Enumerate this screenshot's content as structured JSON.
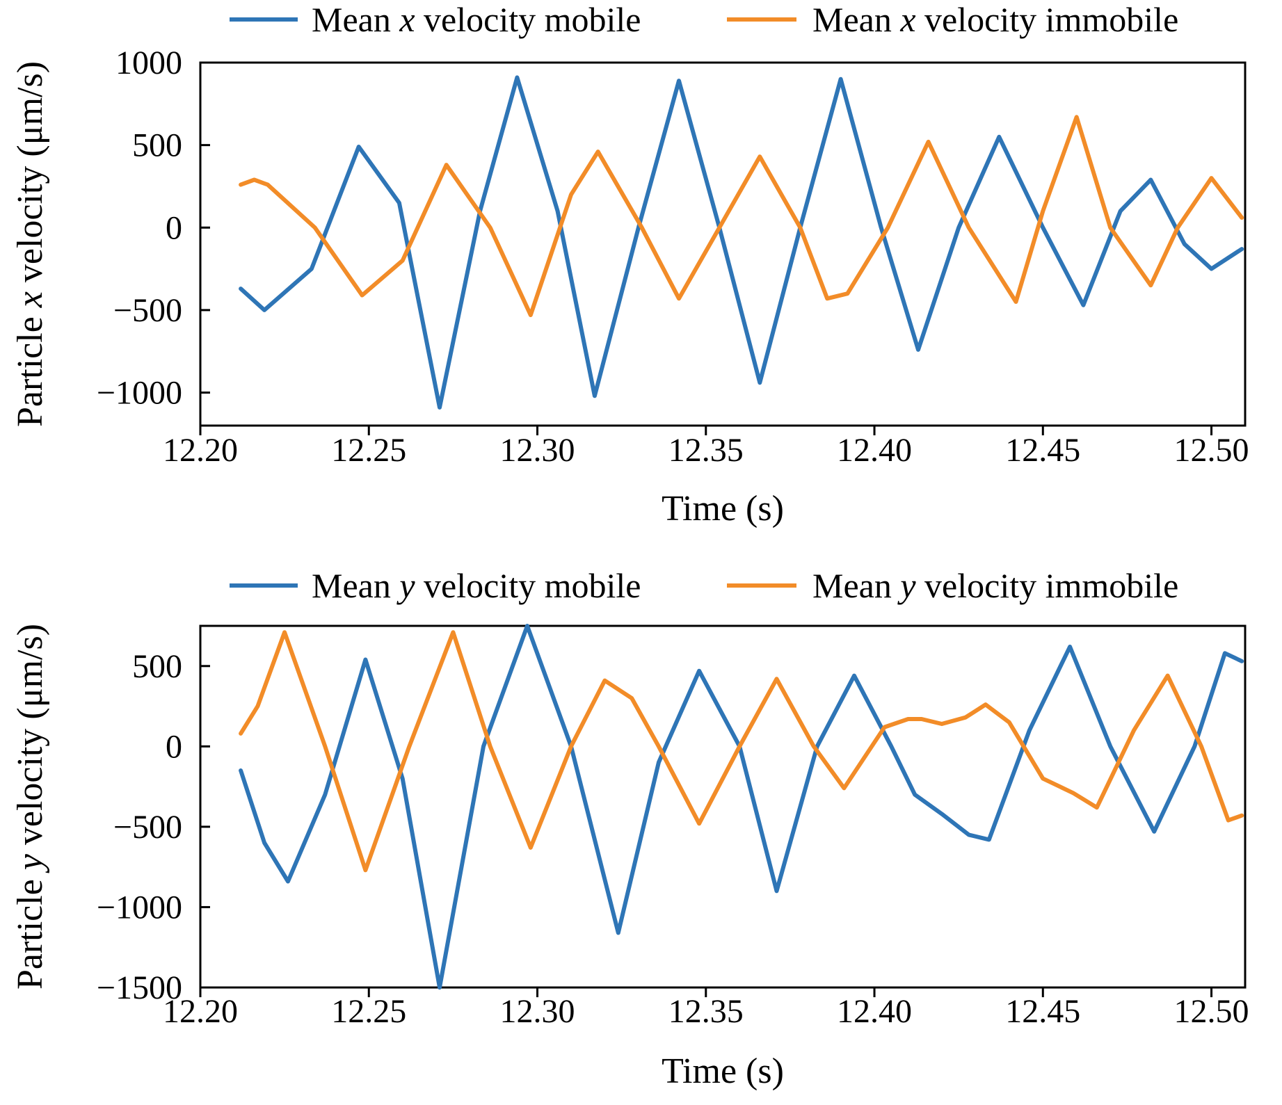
{
  "chart_data": [
    {
      "type": "line",
      "xlabel": "Time (s)",
      "ylabel_parts": [
        "Particle ",
        "x",
        " velocity (μm/s)"
      ],
      "xlim": [
        12.2,
        12.51
      ],
      "ylim": [
        -1200,
        1000
      ],
      "xticks": [
        12.2,
        12.25,
        12.3,
        12.35,
        12.4,
        12.45,
        12.5
      ],
      "xtick_labels": [
        "12.20",
        "12.25",
        "12.30",
        "12.35",
        "12.40",
        "12.45",
        "12.50"
      ],
      "yticks": [
        -1000,
        -500,
        0,
        500,
        1000
      ],
      "ytick_labels": [
        "−1000",
        "−500",
        "0",
        "500",
        "1000"
      ],
      "grid": false,
      "legend_position": "top",
      "series": [
        {
          "legend_parts": [
            "Mean ",
            "x",
            " velocity mobile"
          ],
          "color": "#2e75b6",
          "x": [
            12.212,
            12.219,
            12.233,
            12.247,
            12.259,
            12.271,
            12.283,
            12.294,
            12.306,
            12.317,
            12.33,
            12.342,
            12.354,
            12.366,
            12.378,
            12.39,
            12.402,
            12.413,
            12.425,
            12.437,
            12.45,
            12.462,
            12.473,
            12.482,
            12.492,
            12.5,
            12.509
          ],
          "y": [
            -370,
            -500,
            -250,
            490,
            150,
            -1090,
            100,
            910,
            100,
            -1020,
            0,
            890,
            0,
            -940,
            0,
            900,
            0,
            -740,
            0,
            550,
            0,
            -470,
            100,
            290,
            -100,
            -250,
            -130
          ]
        },
        {
          "legend_parts": [
            "Mean ",
            "x",
            " velocity immobile"
          ],
          "color": "#f28c28",
          "x": [
            12.212,
            12.216,
            12.22,
            12.234,
            12.248,
            12.26,
            12.273,
            12.286,
            12.298,
            12.31,
            12.318,
            12.331,
            12.342,
            12.354,
            12.366,
            12.378,
            12.386,
            12.392,
            12.404,
            12.416,
            12.428,
            12.442,
            12.45,
            12.46,
            12.47,
            12.482,
            12.49,
            12.5,
            12.509
          ],
          "y": [
            260,
            290,
            260,
            0,
            -410,
            -200,
            380,
            0,
            -530,
            200,
            460,
            0,
            -430,
            0,
            430,
            0,
            -430,
            -400,
            0,
            520,
            0,
            -450,
            100,
            670,
            0,
            -350,
            0,
            300,
            60
          ]
        }
      ]
    },
    {
      "type": "line",
      "xlabel": "Time (s)",
      "ylabel_parts": [
        "Particle ",
        "y",
        " velocity (μm/s)"
      ],
      "xlim": [
        12.2,
        12.51
      ],
      "ylim": [
        -1500,
        750
      ],
      "xticks": [
        12.2,
        12.25,
        12.3,
        12.35,
        12.4,
        12.45,
        12.5
      ],
      "xtick_labels": [
        "12.20",
        "12.25",
        "12.30",
        "12.35",
        "12.40",
        "12.45",
        "12.50"
      ],
      "yticks": [
        -1500,
        -1000,
        -500,
        0,
        500
      ],
      "ytick_labels": [
        "−1500",
        "−1000",
        "−500",
        "0",
        "500"
      ],
      "grid": false,
      "legend_position": "top",
      "series": [
        {
          "legend_parts": [
            "Mean ",
            "y",
            " velocity mobile"
          ],
          "color": "#2e75b6",
          "x": [
            12.212,
            12.219,
            12.226,
            12.237,
            12.249,
            12.26,
            12.271,
            12.284,
            12.297,
            12.31,
            12.324,
            12.336,
            12.348,
            12.36,
            12.371,
            12.383,
            12.394,
            12.405,
            12.412,
            12.42,
            12.428,
            12.434,
            12.446,
            12.458,
            12.47,
            12.483,
            12.495,
            12.504,
            12.509
          ],
          "y": [
            -150,
            -600,
            -840,
            -300,
            540,
            -200,
            -1500,
            0,
            750,
            0,
            -1160,
            -100,
            470,
            0,
            -900,
            0,
            440,
            0,
            -300,
            -420,
            -550,
            -580,
            100,
            620,
            0,
            -530,
            0,
            580,
            530
          ]
        },
        {
          "legend_parts": [
            "Mean ",
            "y",
            " velocity immobile"
          ],
          "color": "#f28c28",
          "x": [
            12.212,
            12.217,
            12.225,
            12.237,
            12.249,
            12.262,
            12.275,
            12.286,
            12.298,
            12.31,
            12.32,
            12.328,
            12.336,
            12.348,
            12.36,
            12.371,
            12.382,
            12.391,
            12.403,
            12.41,
            12.414,
            12.42,
            12.427,
            12.433,
            12.44,
            12.45,
            12.459,
            12.466,
            12.477,
            12.487,
            12.497,
            12.505,
            12.509
          ],
          "y": [
            80,
            250,
            710,
            0,
            -770,
            0,
            710,
            0,
            -630,
            0,
            410,
            300,
            0,
            -480,
            0,
            420,
            0,
            -260,
            120,
            170,
            170,
            140,
            180,
            260,
            150,
            -200,
            -290,
            -380,
            100,
            440,
            0,
            -460,
            -430
          ]
        }
      ]
    }
  ]
}
